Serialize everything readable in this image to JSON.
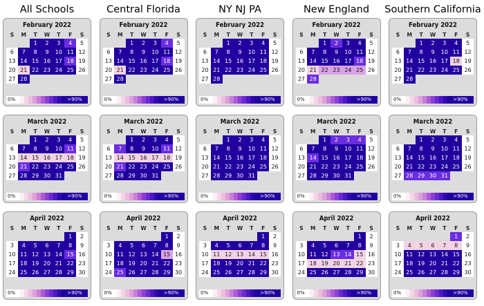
{
  "columns": [
    "All Schools",
    "Central Florida",
    "NY NJ PA",
    "New England",
    "Southern California"
  ],
  "dow": [
    "S",
    "M",
    "T",
    "W",
    "T",
    "F",
    "S"
  ],
  "legend": {
    "low": "0%",
    "high": ">90%"
  },
  "colors": {
    "full": "#2200a0",
    "mid": "#6a2de0",
    "light": "#d9a2e6",
    "pale": "#f2d3e4",
    "white": "#ffffff"
  },
  "months": [
    {
      "name": "February 2022",
      "start": 2,
      "days": 28
    },
    {
      "name": "March 2022",
      "start": 2,
      "days": 31
    },
    {
      "name": "April 2022",
      "start": 5,
      "days": 30
    }
  ],
  "intensity": {
    "All Schools": [
      {
        "1": "full",
        "2": "full",
        "3": "full",
        "4": "mid",
        "7": "full",
        "8": "full",
        "9": "full",
        "10": "full",
        "11": "full",
        "14": "full",
        "15": "full",
        "16": "full",
        "17": "full",
        "18": "mid",
        "21": "pale",
        "22": "full",
        "23": "full",
        "24": "full",
        "25": "full",
        "28": "full"
      },
      {
        "1": "full",
        "2": "full",
        "3": "full",
        "4": "full",
        "7": "full",
        "8": "full",
        "9": "full",
        "10": "full",
        "11": "mid",
        "14": "pale",
        "15": "pale",
        "16": "pale",
        "17": "pale",
        "18": "pale",
        "21": "mid",
        "22": "full",
        "23": "full",
        "24": "full",
        "25": "full",
        "28": "full",
        "29": "full",
        "30": "full",
        "31": "full"
      },
      {
        "1": "full",
        "4": "full",
        "5": "full",
        "6": "full",
        "7": "full",
        "8": "full",
        "11": "full",
        "12": "full",
        "13": "full",
        "14": "full",
        "15": "mid",
        "18": "full",
        "19": "full",
        "20": "full",
        "21": "full",
        "22": "full",
        "25": "full",
        "26": "full",
        "27": "full",
        "28": "full",
        "29": "full"
      }
    ],
    "Central Florida": [
      {
        "1": "full",
        "2": "full",
        "3": "full",
        "4": "mid",
        "7": "full",
        "8": "full",
        "9": "full",
        "10": "full",
        "11": "full",
        "14": "full",
        "15": "full",
        "16": "full",
        "17": "full",
        "18": "mid",
        "21": "pale",
        "22": "full",
        "23": "full",
        "24": "full",
        "25": "full",
        "28": "full"
      },
      {
        "1": "full",
        "2": "full",
        "3": "full",
        "4": "full",
        "7": "mid",
        "8": "full",
        "9": "full",
        "10": "full",
        "11": "mid",
        "14": "pale",
        "15": "pale",
        "16": "pale",
        "17": "pale",
        "18": "pale",
        "21": "mid",
        "22": "full",
        "23": "full",
        "24": "full",
        "25": "full",
        "28": "full",
        "29": "full",
        "30": "full",
        "31": "full"
      },
      {
        "1": "full",
        "4": "full",
        "5": "full",
        "6": "full",
        "7": "full",
        "8": "full",
        "11": "full",
        "12": "full",
        "13": "full",
        "14": "full",
        "15": "light",
        "18": "full",
        "19": "full",
        "20": "full",
        "21": "full",
        "22": "full",
        "25": "mid",
        "26": "full",
        "27": "full",
        "28": "full",
        "29": "full"
      }
    ],
    "NY NJ PA": [
      {
        "1": "full",
        "2": "full",
        "3": "full",
        "4": "full",
        "7": "full",
        "8": "full",
        "9": "full",
        "10": "full",
        "11": "full",
        "14": "full",
        "15": "full",
        "16": "full",
        "17": "full",
        "18": "full",
        "21": "full",
        "22": "full",
        "23": "full",
        "24": "full",
        "25": "full",
        "28": "full"
      },
      {
        "1": "full",
        "2": "full",
        "3": "full",
        "4": "full",
        "7": "full",
        "8": "full",
        "9": "full",
        "10": "full",
        "11": "full",
        "14": "full",
        "15": "full",
        "16": "full",
        "17": "full",
        "18": "full",
        "21": "full",
        "22": "full",
        "23": "full",
        "24": "full",
        "25": "full",
        "28": "full",
        "29": "full",
        "30": "full",
        "31": "full"
      },
      {
        "1": "full",
        "4": "full",
        "5": "full",
        "6": "full",
        "7": "full",
        "8": "full",
        "11": "pale",
        "12": "pale",
        "13": "pale",
        "14": "pale",
        "15": "pale",
        "18": "full",
        "19": "full",
        "20": "full",
        "21": "full",
        "22": "full",
        "25": "full",
        "26": "full",
        "27": "full",
        "28": "full",
        "29": "full"
      }
    ],
    "New England": [
      {
        "1": "full",
        "2": "mid",
        "3": "full",
        "4": "full",
        "7": "full",
        "8": "full",
        "9": "full",
        "10": "full",
        "11": "full",
        "14": "full",
        "15": "full",
        "16": "full",
        "17": "full",
        "18": "mid",
        "21": "pale",
        "22": "light",
        "23": "light",
        "24": "light",
        "25": "light",
        "28": "mid"
      },
      {
        "1": "full",
        "2": "mid",
        "3": "mid",
        "4": "mid",
        "7": "full",
        "8": "full",
        "9": "full",
        "10": "full",
        "11": "full",
        "14": "mid",
        "15": "full",
        "16": "full",
        "17": "full",
        "18": "full",
        "21": "full",
        "22": "full",
        "23": "full",
        "24": "full",
        "25": "full",
        "28": "full",
        "29": "full",
        "30": "full",
        "31": "full"
      },
      {
        "1": "full",
        "4": "full",
        "5": "full",
        "6": "full",
        "7": "full",
        "8": "full",
        "11": "full",
        "12": "full",
        "13": "mid",
        "14": "mid",
        "15": "pale",
        "18": "pale",
        "19": "pale",
        "20": "pale",
        "21": "pale",
        "22": "pale",
        "25": "full",
        "26": "full",
        "27": "full",
        "28": "full",
        "29": "full"
      }
    ],
    "Southern California": [
      {
        "1": "full",
        "2": "full",
        "3": "full",
        "4": "full",
        "7": "full",
        "8": "full",
        "9": "full",
        "10": "full",
        "11": "full",
        "14": "full",
        "15": "full",
        "16": "full",
        "17": "full",
        "18": "pale",
        "21": "full",
        "22": "full",
        "23": "full",
        "24": "full",
        "25": "full",
        "28": "full"
      },
      {
        "1": "full",
        "2": "full",
        "3": "full",
        "4": "full",
        "7": "full",
        "8": "full",
        "9": "full",
        "10": "full",
        "11": "full",
        "14": "full",
        "15": "full",
        "16": "full",
        "17": "full",
        "18": "full",
        "21": "full",
        "22": "full",
        "23": "full",
        "24": "full",
        "25": "full",
        "28": "mid",
        "29": "mid",
        "30": "mid",
        "31": "mid"
      },
      {
        "1": "mid",
        "4": "pale",
        "5": "pale",
        "6": "pale",
        "7": "pale",
        "8": "pale",
        "11": "full",
        "12": "full",
        "13": "full",
        "14": "full",
        "15": "full",
        "18": "full",
        "19": "full",
        "20": "full",
        "21": "full",
        "22": "full",
        "25": "full",
        "26": "full",
        "27": "full",
        "28": "full",
        "29": "full"
      }
    ]
  }
}
